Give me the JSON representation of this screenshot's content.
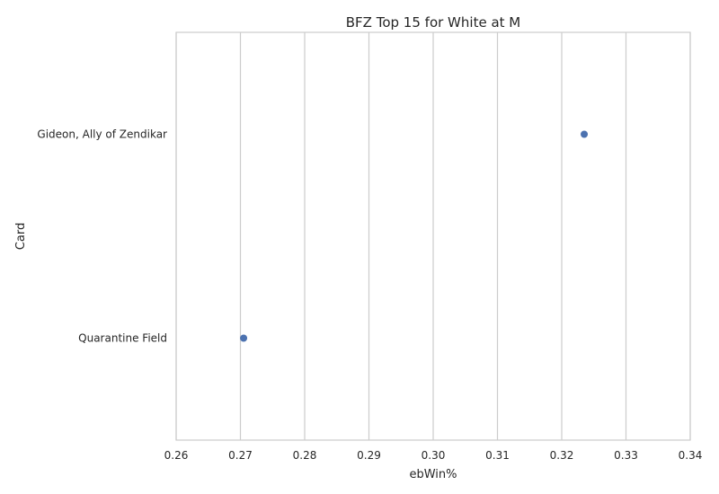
{
  "chart_data": {
    "type": "scatter",
    "title": "BFZ Top 15 for White at M",
    "xlabel": "ebWin%",
    "ylabel": "Card",
    "xlim": [
      0.26,
      0.34
    ],
    "xticks": [
      "0.26",
      "0.27",
      "0.28",
      "0.29",
      "0.30",
      "0.31",
      "0.32",
      "0.33",
      "0.34"
    ],
    "categories": [
      "Gideon, Ally of Zendikar",
      "Quarantine Field"
    ],
    "values": [
      0.3235,
      0.2705
    ],
    "grid": "vertical",
    "marker_color": "#4c72b0"
  }
}
